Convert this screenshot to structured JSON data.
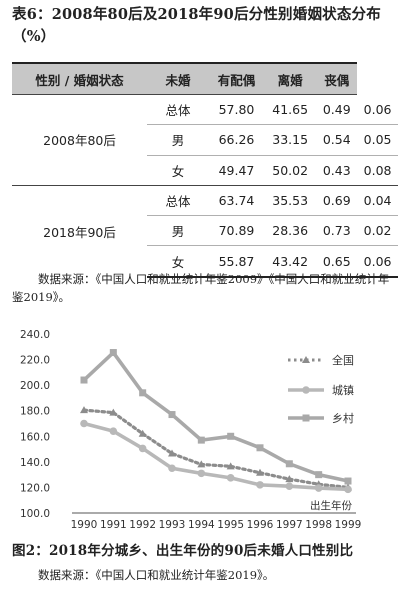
{
  "table6": {
    "caption": "表6：2008年80后及2018年90后分性别婚姻状态分布（%）",
    "headers": [
      "性别 / 婚姻状态",
      "未婚",
      "有配偶",
      "离婚",
      "丧偶"
    ],
    "groups": [
      {
        "label": "2008年80后",
        "rows": [
          {
            "sub": "总体",
            "values": [
              "57.80",
              "41.65",
              "0.49",
              "0.06"
            ]
          },
          {
            "sub": "男",
            "values": [
              "66.26",
              "33.15",
              "0.54",
              "0.05"
            ]
          },
          {
            "sub": "女",
            "values": [
              "49.47",
              "50.02",
              "0.43",
              "0.08"
            ]
          }
        ]
      },
      {
        "label": "2018年90后",
        "rows": [
          {
            "sub": "总体",
            "values": [
              "63.74",
              "35.53",
              "0.69",
              "0.04"
            ]
          },
          {
            "sub": "男",
            "values": [
              "70.89",
              "28.36",
              "0.73",
              "0.02"
            ]
          },
          {
            "sub": "女",
            "values": [
              "55.87",
              "43.42",
              "0.65",
              "0.06"
            ]
          }
        ]
      }
    ],
    "source": "数据来源：《中国人口和就业统计年鉴2009》《中国人口和就业统计年鉴2019》。"
  },
  "figure2": {
    "caption": "图2：2018年分城乡、出生年份的90后未婚人口性别比",
    "source": "数据来源：《中国人口和就业统计年鉴2019》。"
  },
  "chart_data": {
    "type": "line",
    "title": "",
    "xlabel": "出生年份",
    "ylabel": "",
    "x": [
      "1990",
      "1991",
      "1992",
      "1993",
      "1994",
      "1995",
      "1996",
      "1997",
      "1998",
      "1999"
    ],
    "ylim": [
      100.0,
      240.0
    ],
    "yticks": [
      "100.0",
      "120.0",
      "140.0",
      "160.0",
      "180.0",
      "200.0",
      "220.0",
      "240.0"
    ],
    "legend_position": "right",
    "series": [
      {
        "name": "全国",
        "style": "dotted-triangle",
        "color": "#8c8c8c",
        "values": [
          180.5,
          178.5,
          162.0,
          146.5,
          138.0,
          136.5,
          131.5,
          126.5,
          122.5,
          120.0
        ]
      },
      {
        "name": "城镇",
        "style": "solid-circle",
        "color": "#b8b8b8",
        "values": [
          170.0,
          164.0,
          150.5,
          135.0,
          131.0,
          127.5,
          122.0,
          121.0,
          119.5,
          118.5
        ]
      },
      {
        "name": "乡村",
        "style": "solid-square",
        "color": "#a9a9a9",
        "values": [
          204.0,
          225.5,
          194.0,
          177.0,
          157.0,
          160.0,
          151.0,
          138.5,
          130.0,
          125.0
        ]
      }
    ]
  }
}
